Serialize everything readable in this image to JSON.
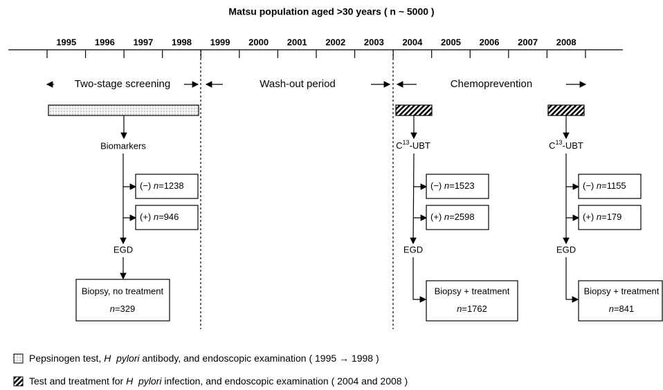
{
  "title": "Matsu population aged >30 years ( n ~ 5000 )",
  "years": [
    "1995",
    "1996",
    "1997",
    "1998",
    "1999",
    "2000",
    "2001",
    "2002",
    "2003",
    "2004",
    "2005",
    "2006",
    "2007",
    "2008"
  ],
  "phases": [
    "Two-stage screening",
    "Wash-out period",
    "Chemoprevention"
  ],
  "flows": [
    {
      "start": {
        "base": "Biomarkers"
      },
      "negative": {
        "sign": "(−)",
        "var": "n",
        "count": "=1238"
      },
      "positive": {
        "sign": "(+)",
        "var": "n",
        "count": "=946"
      },
      "exam": "EGD",
      "outcome": {
        "label": "Biopsy, no treatment",
        "var": "n",
        "count": "=329"
      }
    },
    {
      "start": {
        "base": "C",
        "sup": "13",
        "rest": "-UBT"
      },
      "negative": {
        "sign": "(−)",
        "var": "n",
        "count": "=1523"
      },
      "positive": {
        "sign": "(+)",
        "var": "n",
        "count": "=2598"
      },
      "exam": "EGD",
      "outcome": {
        "label": "Biopsy + treatment",
        "var": "n",
        "count": "=1762"
      }
    },
    {
      "start": {
        "base": "C",
        "sup": "13",
        "rest": "-UBT"
      },
      "negative": {
        "sign": "(−)",
        "var": "n",
        "count": "=1155"
      },
      "positive": {
        "sign": "(+)",
        "var": "n",
        "count": "=179"
      },
      "exam": "EGD",
      "outcome": {
        "label": "Biopsy + treatment",
        "var": "n",
        "count": "=841"
      }
    }
  ],
  "legend": [
    [
      "Pepsinogen test, ",
      "H  pylori",
      " antibody, and endoscopic examination ( 1995 → 1998 )"
    ],
    [
      "Test and treatment for ",
      "H  pylori",
      " infection, and endoscopic examination ( 2004 and 2008 )"
    ]
  ]
}
